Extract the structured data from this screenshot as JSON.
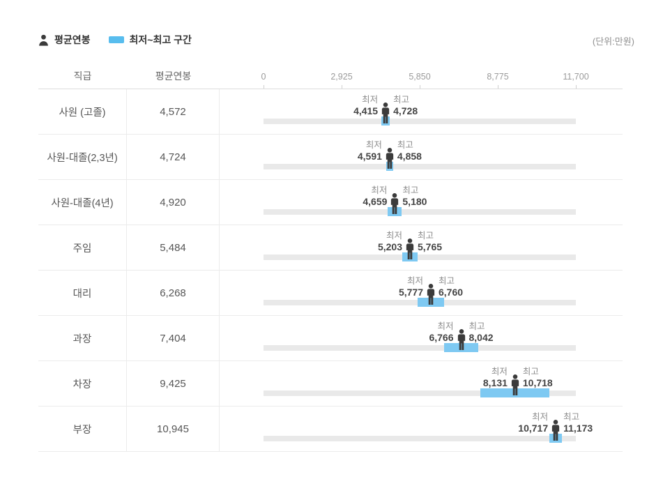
{
  "legend": {
    "avg_label": "평균연봉",
    "range_label": "최저~최고 구간",
    "unit_label": "(단위:만원)"
  },
  "header": {
    "position_col": "직급",
    "avg_col": "평균연봉"
  },
  "colors": {
    "range_bar": "#7ec9f2",
    "legend_swatch": "#58bdee",
    "track_gray": "#e9e9e9",
    "person_dark": "#3b3b3b"
  },
  "chart_data": {
    "type": "bar",
    "subtype": "min-max-range-with-average",
    "unit": "만원",
    "min_caption": "최저",
    "max_caption": "최고",
    "axis": {
      "min": 0,
      "max": 11700,
      "ticks": [
        0,
        2925,
        5850,
        8775,
        11700
      ],
      "tick_labels": [
        "0",
        "2,925",
        "5,850",
        "8,775",
        "11,700"
      ]
    },
    "rows": [
      {
        "position": "사원 (고졸)",
        "avg": 4572,
        "avg_label": "4,572",
        "min": 4415,
        "min_label": "4,415",
        "max": 4728,
        "max_label": "4,728"
      },
      {
        "position": "사원-대졸(2,3년)",
        "avg": 4724,
        "avg_label": "4,724",
        "min": 4591,
        "min_label": "4,591",
        "max": 4858,
        "max_label": "4,858"
      },
      {
        "position": "사원-대졸(4년)",
        "avg": 4920,
        "avg_label": "4,920",
        "min": 4659,
        "min_label": "4,659",
        "max": 5180,
        "max_label": "5,180"
      },
      {
        "position": "주임",
        "avg": 5484,
        "avg_label": "5,484",
        "min": 5203,
        "min_label": "5,203",
        "max": 5765,
        "max_label": "5,765"
      },
      {
        "position": "대리",
        "avg": 6268,
        "avg_label": "6,268",
        "min": 5777,
        "min_label": "5,777",
        "max": 6760,
        "max_label": "6,760"
      },
      {
        "position": "과장",
        "avg": 7404,
        "avg_label": "7,404",
        "min": 6766,
        "min_label": "6,766",
        "max": 8042,
        "max_label": "8,042"
      },
      {
        "position": "차장",
        "avg": 9425,
        "avg_label": "9,425",
        "min": 8131,
        "min_label": "8,131",
        "max": 10718,
        "max_label": "10,718"
      },
      {
        "position": "부장",
        "avg": 10945,
        "avg_label": "10,945",
        "min": 10717,
        "min_label": "10,717",
        "max": 11173,
        "max_label": "11,173"
      }
    ]
  }
}
